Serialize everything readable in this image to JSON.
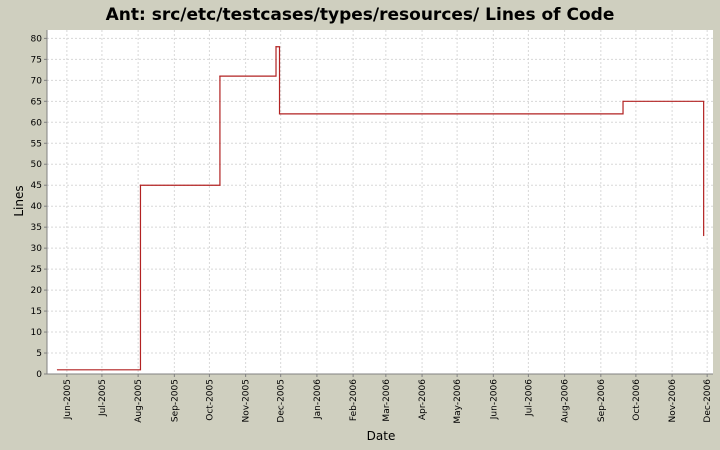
{
  "chart_data": {
    "type": "line",
    "title": "Ant: src/etc/testcases/types/resources/ Lines of Code",
    "xlabel": "Date",
    "ylabel": "Lines",
    "step": true,
    "grid": true,
    "legend": "none",
    "ylim": [
      0,
      82
    ],
    "xlim": [
      "2005-05-15",
      "2006-12-06"
    ],
    "yticks": [
      0,
      5,
      10,
      15,
      20,
      25,
      30,
      35,
      40,
      45,
      50,
      55,
      60,
      65,
      70,
      75,
      80
    ],
    "xticks": [
      {
        "date": "2005-06-01",
        "label": "Jun-2005"
      },
      {
        "date": "2005-07-01",
        "label": "Jul-2005"
      },
      {
        "date": "2005-08-01",
        "label": "Aug-2005"
      },
      {
        "date": "2005-09-01",
        "label": "Sep-2005"
      },
      {
        "date": "2005-10-01",
        "label": "Oct-2005"
      },
      {
        "date": "2005-11-01",
        "label": "Nov-2005"
      },
      {
        "date": "2005-12-01",
        "label": "Dec-2005"
      },
      {
        "date": "2006-01-01",
        "label": "Jan-2006"
      },
      {
        "date": "2006-02-01",
        "label": "Feb-2006"
      },
      {
        "date": "2006-03-01",
        "label": "Mar-2006"
      },
      {
        "date": "2006-04-01",
        "label": "Apr-2006"
      },
      {
        "date": "2006-05-01",
        "label": "May-2006"
      },
      {
        "date": "2006-06-01",
        "label": "Jun-2006"
      },
      {
        "date": "2006-07-01",
        "label": "Jul-2006"
      },
      {
        "date": "2006-08-01",
        "label": "Aug-2006"
      },
      {
        "date": "2006-09-01",
        "label": "Sep-2006"
      },
      {
        "date": "2006-10-01",
        "label": "Oct-2006"
      },
      {
        "date": "2006-11-01",
        "label": "Nov-2006"
      },
      {
        "date": "2006-12-01",
        "label": "Dec-2006"
      }
    ],
    "series": [
      {
        "color": "#b22222",
        "points": [
          {
            "x": "2005-05-24",
            "y": 1
          },
          {
            "x": "2005-08-03",
            "y": 45
          },
          {
            "x": "2005-10-10",
            "y": 71
          },
          {
            "x": "2005-11-27",
            "y": 78
          },
          {
            "x": "2005-11-30",
            "y": 62
          },
          {
            "x": "2006-09-20",
            "y": 65
          },
          {
            "x": "2006-11-28",
            "y": 33
          }
        ]
      }
    ],
    "colors": {
      "background": "#cfcfbf",
      "plot_background": "#ffffff",
      "grid": "#d8d8d8",
      "axis": "#808080",
      "line": "#b22222"
    }
  }
}
